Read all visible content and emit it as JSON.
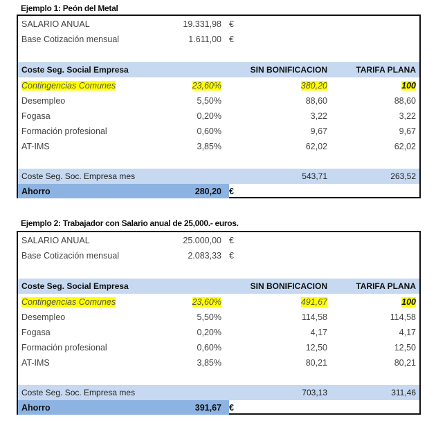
{
  "examples": [
    {
      "title": "Ejemplo 1: Peón del Metal",
      "salario_label": "SALARIO ANUAL",
      "salario": "19.331,98",
      "base_label": "Base Cotización mensual",
      "base": "1.611,00",
      "currency": "€",
      "headers": {
        "concept": "Coste Seg. Social Empresa",
        "sin": "SIN BONIFICACION",
        "tarifa": "TARIFA PLANA"
      },
      "rows": [
        {
          "label": "Contingencias Comunes",
          "pct": "23,60%",
          "sin": "380,20",
          "tarifa": "100",
          "highlight": true
        },
        {
          "label": "Desempleo",
          "pct": "5,50%",
          "sin": "88,60",
          "tarifa": "88,60"
        },
        {
          "label": "Fogasa",
          "pct": "0,20%",
          "sin": "3,22",
          "tarifa": "3,22"
        },
        {
          "label": "Formación profesional",
          "pct": "0,60%",
          "sin": "9,67",
          "tarifa": "9,67"
        },
        {
          "label": "AT-IMS",
          "pct": "3,85%",
          "sin": "62,02",
          "tarifa": "62,02"
        }
      ],
      "total": {
        "label": "Coste Seg. Soc. Empresa mes",
        "sin": "543,71",
        "tarifa": "263,52"
      },
      "ahorro": {
        "label": "Ahorro",
        "value": "280,20",
        "currency": "€"
      }
    },
    {
      "title": "Ejemplo 2: Trabajador con Salario anual de 25,000.- euros.",
      "salario_label": "SALARIO ANUAL",
      "salario": "25.000,00",
      "base_label": "Base Cotización mensual",
      "base": "2.083,33",
      "currency": "€",
      "headers": {
        "concept": "Coste Seg. Social Empresa",
        "sin": "SIN BONIFICACION",
        "tarifa": "TARIFA PLANA"
      },
      "rows": [
        {
          "label": "Contingencias Comunes",
          "pct": "23,60%",
          "sin": "491,67",
          "tarifa": "100",
          "highlight": true
        },
        {
          "label": "Desempleo",
          "pct": "5,50%",
          "sin": "114,58",
          "tarifa": "114,58"
        },
        {
          "label": "Fogasa",
          "pct": "0,20%",
          "sin": "4,17",
          "tarifa": "4,17"
        },
        {
          "label": "Formación profesional",
          "pct": "0,60%",
          "sin": "12,50",
          "tarifa": "12,50"
        },
        {
          "label": "AT-IMS",
          "pct": "3,85%",
          "sin": "80,21",
          "tarifa": "80,21"
        }
      ],
      "total": {
        "label": "Coste Seg. Soc. Empresa mes",
        "sin": "703,13",
        "tarifa": "311,46"
      },
      "ahorro": {
        "label": "Ahorro",
        "value": "391,67",
        "currency": "€"
      }
    }
  ]
}
